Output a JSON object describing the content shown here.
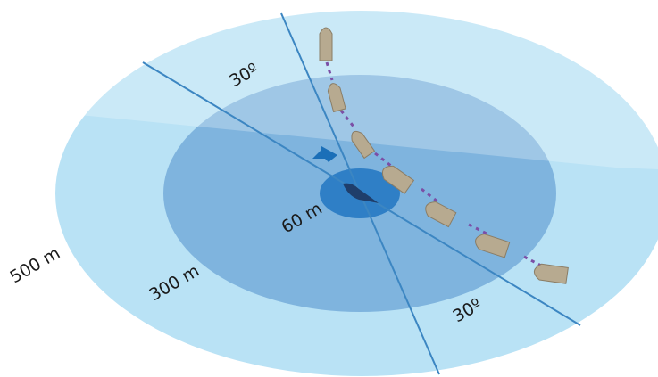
{
  "labels": {
    "angle_top": "30º",
    "angle_bottom": "30º",
    "inner_radius": "60 m",
    "middle_radius": "300 m",
    "outer_radius": "500 m"
  }
}
